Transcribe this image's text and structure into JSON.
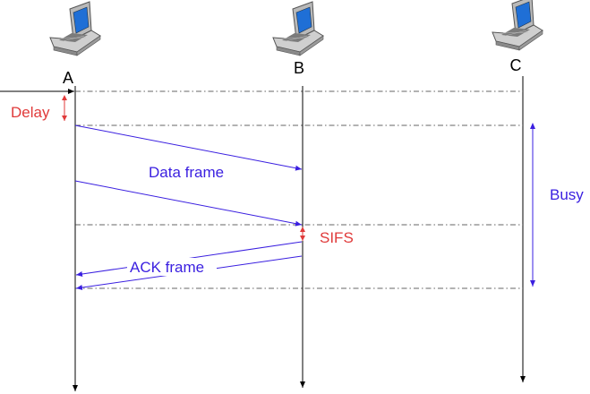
{
  "nodes": [
    {
      "id": "A",
      "label": "A",
      "icon": "laptop-icon"
    },
    {
      "id": "B",
      "label": "B",
      "icon": "laptop-icon"
    },
    {
      "id": "C",
      "label": "C",
      "icon": "laptop-icon"
    }
  ],
  "messages": {
    "data_frame": "Data frame",
    "ack_frame": "ACK frame"
  },
  "intervals": {
    "delay": "Delay",
    "sifs": "SIFS",
    "busy": "Busy"
  },
  "colors": {
    "message": "#3a1fe0",
    "interval": "#e03a3a",
    "line": "#000000",
    "dashed": "#333333"
  }
}
